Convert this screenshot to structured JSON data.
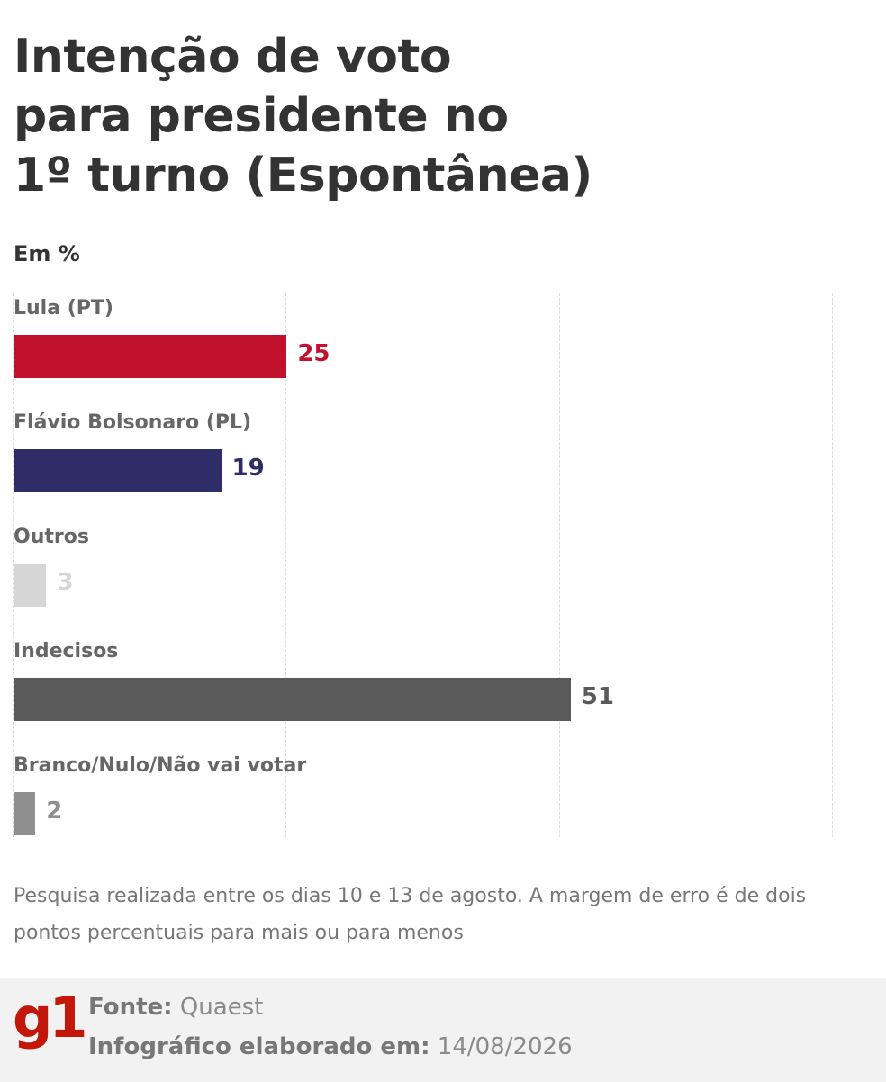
{
  "header": {
    "title_lines": [
      "Intenção de voto",
      "para presidente no",
      "1º turno (Espontânea)"
    ],
    "unit": "Em %"
  },
  "chart_data": {
    "type": "bar",
    "orientation": "horizontal",
    "title": "Intenção de voto para presidente no 1º turno (Espontânea)",
    "ylabel": "Em %",
    "xlim": [
      0,
      75
    ],
    "grid": true,
    "categories": [
      "Lula (PT)",
      "Flávio Bolsonaro (PL)",
      "Outros",
      "Indecisos",
      "Branco/Nulo/Não vai votar"
    ],
    "values": [
      25,
      19,
      3,
      51,
      2
    ],
    "value_labels": [
      "25",
      "19",
      "3",
      "51",
      "2"
    ],
    "bar_colors": [
      "#c0122c",
      "#2f2d68",
      "#d6d6d6",
      "#5a5a5a",
      "#8f8f8f"
    ],
    "value_colors": [
      "#c0122c",
      "#2f2d68",
      "#d6d6d6",
      "#5a5a5a",
      "#8f8f8f"
    ]
  },
  "note": "Pesquisa realizada entre os dias 10 e 13 de agosto. A margem de erro é de dois pontos percentuais para mais ou para menos",
  "footer": {
    "logo": "g1",
    "source_label": "Fonte:",
    "source_value": "Quaest",
    "date_label": "Infográfico elaborado em:",
    "date_value": "14/08/2026",
    "logo_color": "#c4170c"
  }
}
